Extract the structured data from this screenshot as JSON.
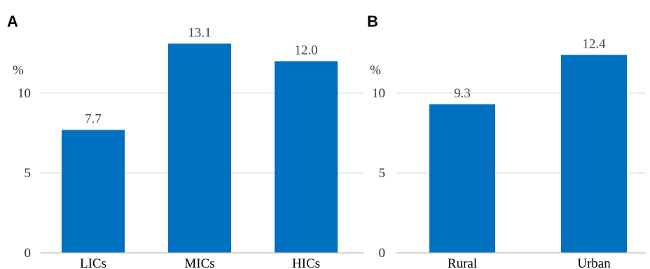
{
  "chart_data": [
    {
      "type": "bar",
      "panel": "A",
      "ylabel": "%",
      "categories": [
        "LICs",
        "MICs",
        "HICs"
      ],
      "values": [
        7.7,
        13.1,
        12.0
      ],
      "data_labels": [
        "7.7",
        "13.1",
        "12.0"
      ],
      "y_ticks": [
        "0",
        "5",
        "10"
      ],
      "ylim": [
        0,
        15
      ],
      "grid": true,
      "bar_color": "#0070C0"
    },
    {
      "type": "bar",
      "panel": "B",
      "ylabel": "%",
      "categories": [
        "Rural",
        "Urban"
      ],
      "values": [
        9.3,
        12.4
      ],
      "data_labels": [
        "9.3",
        "12.4"
      ],
      "y_ticks": [
        "0",
        "5",
        "10"
      ],
      "ylim": [
        0,
        15
      ],
      "grid": true,
      "bar_color": "#0070C0"
    }
  ]
}
